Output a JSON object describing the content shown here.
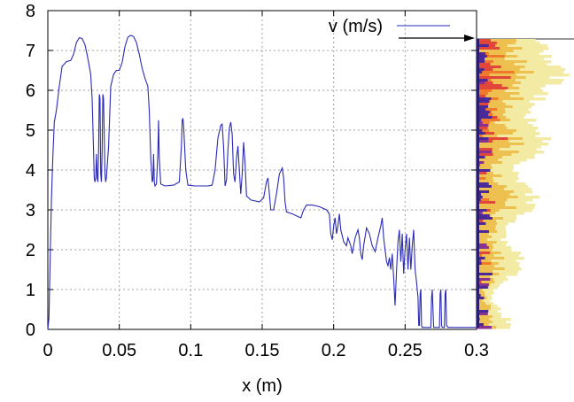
{
  "chart_data": {
    "type": "line",
    "xlabel": "x (m)",
    "ylabel": "",
    "xlim": [
      0,
      0.3
    ],
    "ylim": [
      0,
      8
    ],
    "grid": true,
    "legend_position": "top-right",
    "x_ticks": [
      "0",
      "0.05",
      "0.1",
      "0.15",
      "0.2",
      "0.25",
      "0.3"
    ],
    "y_ticks": [
      "0",
      "1",
      "2",
      "3",
      "4",
      "5",
      "6",
      "7",
      "8"
    ],
    "series": [
      {
        "name": "v (m/s)",
        "color": "#2a2ab8",
        "points": [
          [
            0.0,
            0.0
          ],
          [
            0.0008,
            0.3
          ],
          [
            0.0015,
            1.5
          ],
          [
            0.0025,
            3.2
          ],
          [
            0.0035,
            4.3
          ],
          [
            0.0045,
            5.2
          ],
          [
            0.006,
            5.5
          ],
          [
            0.008,
            6.1
          ],
          [
            0.01,
            6.6
          ],
          [
            0.013,
            6.72
          ],
          [
            0.016,
            6.75
          ],
          [
            0.018,
            6.9
          ],
          [
            0.02,
            7.2
          ],
          [
            0.022,
            7.32
          ],
          [
            0.024,
            7.3
          ],
          [
            0.026,
            7.15
          ],
          [
            0.028,
            6.8
          ],
          [
            0.03,
            6.4
          ],
          [
            0.031,
            5.8
          ],
          [
            0.032,
            4.5
          ],
          [
            0.0325,
            3.8
          ],
          [
            0.033,
            3.7
          ],
          [
            0.0335,
            3.8
          ],
          [
            0.034,
            4.4
          ],
          [
            0.0345,
            3.8
          ],
          [
            0.035,
            3.7
          ],
          [
            0.0355,
            4.5
          ],
          [
            0.036,
            5.9
          ],
          [
            0.0365,
            5.8
          ],
          [
            0.037,
            3.9
          ],
          [
            0.0375,
            3.7
          ],
          [
            0.038,
            4.5
          ],
          [
            0.0385,
            5.9
          ],
          [
            0.039,
            5.8
          ],
          [
            0.04,
            3.9
          ],
          [
            0.0405,
            3.7
          ],
          [
            0.041,
            3.8
          ],
          [
            0.0425,
            4.6
          ],
          [
            0.044,
            6.1
          ],
          [
            0.046,
            6.4
          ],
          [
            0.048,
            6.5
          ],
          [
            0.05,
            6.5
          ],
          [
            0.052,
            6.7
          ],
          [
            0.054,
            7.1
          ],
          [
            0.056,
            7.33
          ],
          [
            0.058,
            7.38
          ],
          [
            0.06,
            7.35
          ],
          [
            0.062,
            7.2
          ],
          [
            0.064,
            6.9
          ],
          [
            0.066,
            6.55
          ],
          [
            0.068,
            6.3
          ],
          [
            0.07,
            6.1
          ],
          [
            0.071,
            5.5
          ],
          [
            0.072,
            4.3
          ],
          [
            0.073,
            3.7
          ],
          [
            0.0735,
            3.75
          ],
          [
            0.074,
            4.4
          ],
          [
            0.0745,
            3.7
          ],
          [
            0.075,
            3.6
          ],
          [
            0.076,
            3.65
          ],
          [
            0.077,
            4.4
          ],
          [
            0.0775,
            5.25
          ],
          [
            0.078,
            4.3
          ],
          [
            0.079,
            3.65
          ],
          [
            0.082,
            3.6
          ],
          [
            0.088,
            3.62
          ],
          [
            0.092,
            3.7
          ],
          [
            0.0935,
            4.6
          ],
          [
            0.094,
            5.25
          ],
          [
            0.0945,
            5.3
          ],
          [
            0.095,
            5.1
          ],
          [
            0.0965,
            4.0
          ],
          [
            0.098,
            3.62
          ],
          [
            0.103,
            3.6
          ],
          [
            0.112,
            3.6
          ],
          [
            0.115,
            3.62
          ],
          [
            0.117,
            4.0
          ],
          [
            0.119,
            4.8
          ],
          [
            0.121,
            5.12
          ],
          [
            0.122,
            5.15
          ],
          [
            0.123,
            4.6
          ],
          [
            0.124,
            3.6
          ],
          [
            0.125,
            3.75
          ],
          [
            0.126,
            4.5
          ],
          [
            0.127,
            5.05
          ],
          [
            0.128,
            5.2
          ],
          [
            0.129,
            4.9
          ],
          [
            0.13,
            3.9
          ],
          [
            0.131,
            3.7
          ],
          [
            0.132,
            4.3
          ],
          [
            0.133,
            4.6
          ],
          [
            0.134,
            4.0
          ],
          [
            0.135,
            3.4
          ],
          [
            0.136,
            3.9
          ],
          [
            0.137,
            4.7
          ],
          [
            0.138,
            4.2
          ],
          [
            0.139,
            3.35
          ],
          [
            0.142,
            3.25
          ],
          [
            0.148,
            3.2
          ],
          [
            0.151,
            3.3
          ],
          [
            0.153,
            3.7
          ],
          [
            0.154,
            3.8
          ],
          [
            0.155,
            3.4
          ],
          [
            0.156,
            3.0
          ],
          [
            0.158,
            3.0
          ],
          [
            0.16,
            3.4
          ],
          [
            0.162,
            3.9
          ],
          [
            0.164,
            4.05
          ],
          [
            0.165,
            3.8
          ],
          [
            0.166,
            3.2
          ],
          [
            0.167,
            2.95
          ],
          [
            0.171,
            2.9
          ],
          [
            0.174,
            2.85
          ],
          [
            0.177,
            2.8
          ],
          [
            0.179,
            3.0
          ],
          [
            0.181,
            3.12
          ],
          [
            0.185,
            3.12
          ],
          [
            0.19,
            3.08
          ],
          [
            0.195,
            3.0
          ],
          [
            0.197,
            2.9
          ],
          [
            0.198,
            2.4
          ],
          [
            0.199,
            2.25
          ],
          [
            0.2,
            2.6
          ],
          [
            0.201,
            2.8
          ],
          [
            0.202,
            2.4
          ],
          [
            0.203,
            2.6
          ],
          [
            0.204,
            2.9
          ],
          [
            0.205,
            2.5
          ],
          [
            0.207,
            2.2
          ],
          [
            0.209,
            2.1
          ],
          [
            0.21,
            2.3
          ],
          [
            0.212,
            2.1
          ],
          [
            0.213,
            1.9
          ],
          [
            0.215,
            2.3
          ],
          [
            0.217,
            2.5
          ],
          [
            0.218,
            2.3
          ],
          [
            0.219,
            1.9
          ],
          [
            0.22,
            1.75
          ],
          [
            0.221,
            2.1
          ],
          [
            0.223,
            2.55
          ],
          [
            0.225,
            2.4
          ],
          [
            0.227,
            2.1
          ],
          [
            0.229,
            1.95
          ],
          [
            0.231,
            2.3
          ],
          [
            0.233,
            2.6
          ],
          [
            0.234,
            2.8
          ],
          [
            0.235,
            2.3
          ],
          [
            0.236,
            2.0
          ],
          [
            0.237,
            1.7
          ],
          [
            0.238,
            1.6
          ],
          [
            0.239,
            1.8
          ],
          [
            0.24,
            1.5
          ],
          [
            0.241,
            1.9
          ],
          [
            0.242,
            1.3
          ],
          [
            0.243,
            0.6
          ],
          [
            0.244,
            1.5
          ],
          [
            0.245,
            2.2
          ],
          [
            0.246,
            2.5
          ],
          [
            0.247,
            1.7
          ],
          [
            0.248,
            2.4
          ],
          [
            0.249,
            1.4
          ],
          [
            0.25,
            2.0
          ],
          [
            0.251,
            2.4
          ],
          [
            0.252,
            1.5
          ],
          [
            0.253,
            2.3
          ],
          [
            0.254,
            1.5
          ],
          [
            0.255,
            2.1
          ],
          [
            0.256,
            2.5
          ],
          [
            0.257,
            1.5
          ],
          [
            0.258,
            1.2
          ],
          [
            0.259,
            0.8
          ],
          [
            0.2595,
            0.1
          ],
          [
            0.26,
            0.1
          ],
          [
            0.2605,
            0.9
          ],
          [
            0.261,
            1.0
          ],
          [
            0.2615,
            0.1
          ],
          [
            0.262,
            0.05
          ],
          [
            0.268,
            0.05
          ],
          [
            0.2685,
            0.8
          ],
          [
            0.269,
            1.0
          ],
          [
            0.2695,
            0.5
          ],
          [
            0.27,
            0.05
          ],
          [
            0.274,
            0.05
          ],
          [
            0.2745,
            0.9
          ],
          [
            0.275,
            1.0
          ],
          [
            0.2755,
            0.1
          ],
          [
            0.276,
            0.05
          ],
          [
            0.2775,
            0.05
          ],
          [
            0.278,
            0.9
          ],
          [
            0.2785,
            1.0
          ],
          [
            0.279,
            0.1
          ],
          [
            0.28,
            0.05
          ],
          [
            0.3,
            0.05
          ]
        ]
      }
    ]
  }
}
